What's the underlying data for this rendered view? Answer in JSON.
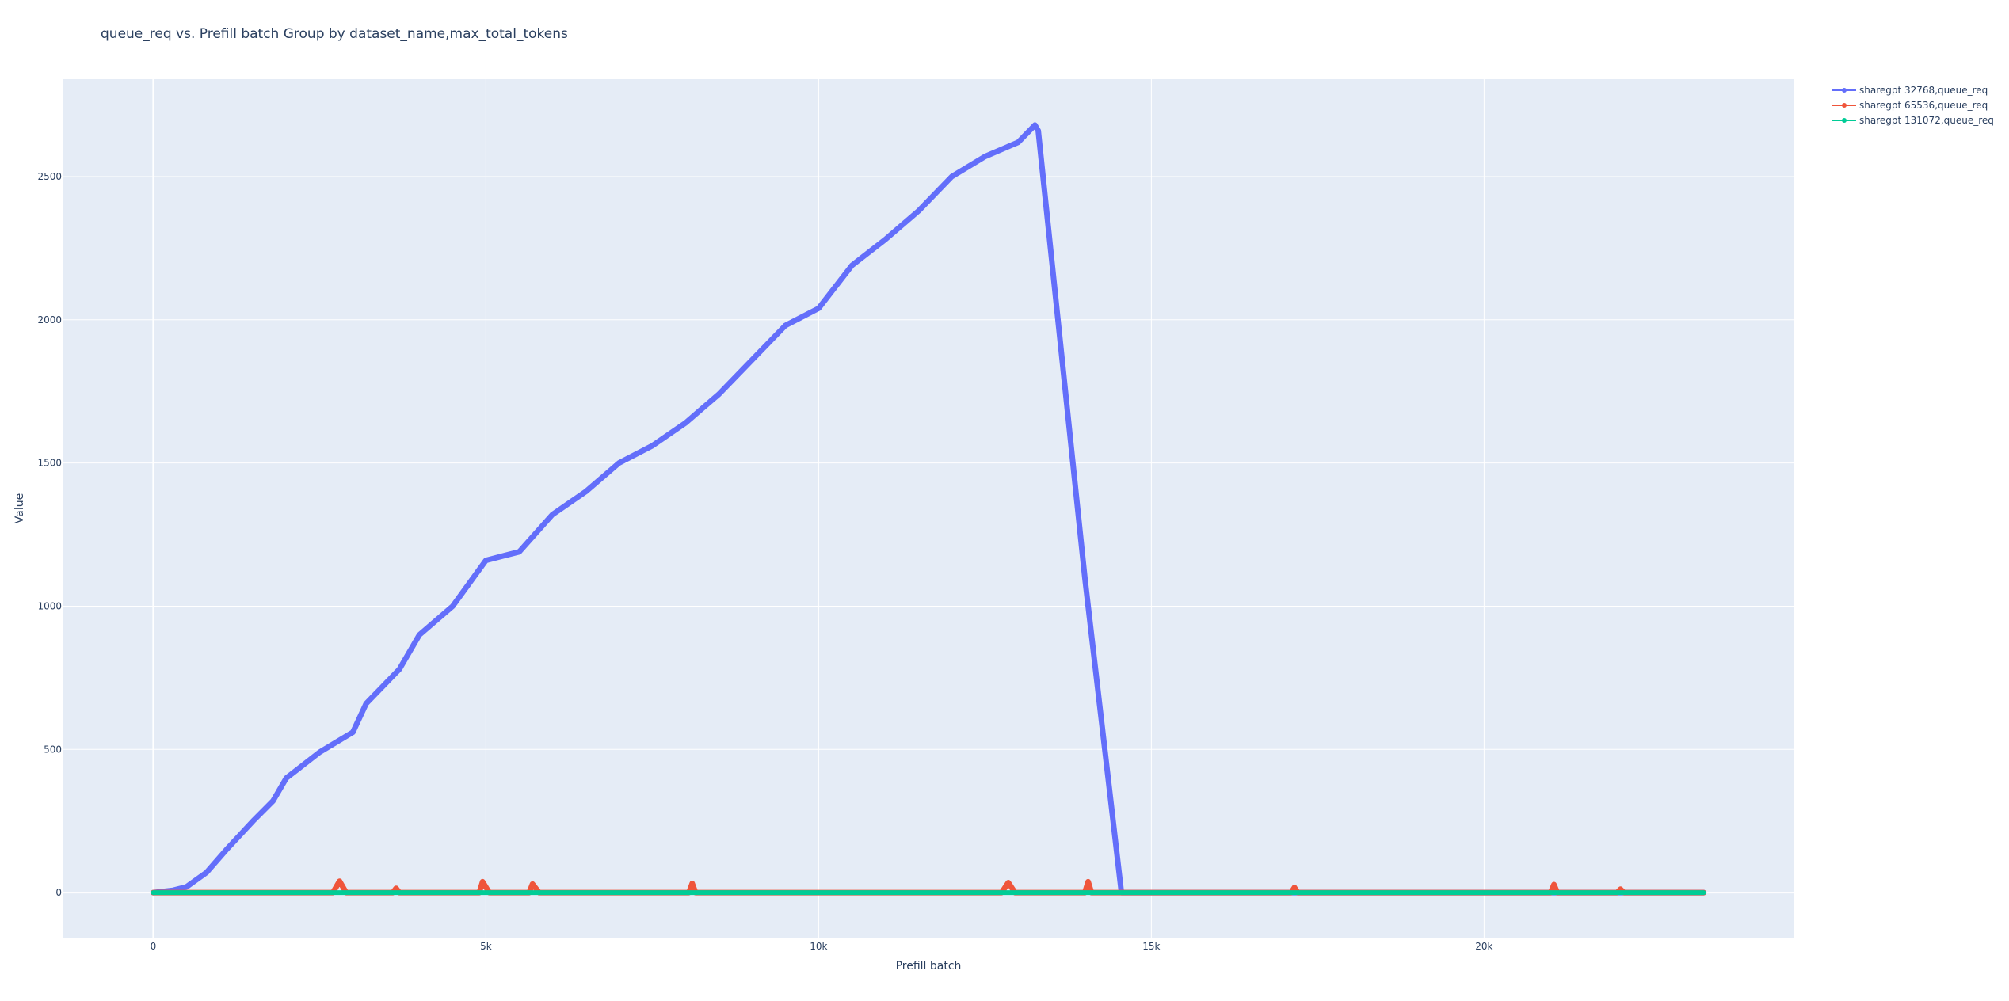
{
  "chart_data": {
    "type": "line",
    "title": "queue_req vs. Prefill batch Group by dataset_name,max_total_tokens",
    "xlabel": "Prefill batch",
    "ylabel": "Value",
    "xlim": [
      -1350,
      24650
    ],
    "ylim": [
      -160,
      2840
    ],
    "x_ticks": [
      0,
      5000,
      10000,
      15000,
      20000
    ],
    "x_tick_labels": [
      "0",
      "5k",
      "10k",
      "15k",
      "20k"
    ],
    "y_ticks": [
      0,
      500,
      1000,
      1500,
      2000,
      2500
    ],
    "y_tick_labels": [
      "0",
      "500",
      "1000",
      "1500",
      "2000",
      "2500"
    ],
    "grid": true,
    "legend_position": "top-right outside",
    "series": [
      {
        "name": "sharegpt 32768,queue_req",
        "color": "#636efa",
        "points": [
          [
            0,
            0
          ],
          [
            300,
            8
          ],
          [
            500,
            20
          ],
          [
            800,
            70
          ],
          [
            1100,
            150
          ],
          [
            1500,
            250
          ],
          [
            1800,
            320
          ],
          [
            2000,
            400
          ],
          [
            2500,
            490
          ],
          [
            3000,
            560
          ],
          [
            3200,
            660
          ],
          [
            3700,
            780
          ],
          [
            4000,
            900
          ],
          [
            4500,
            1000
          ],
          [
            5000,
            1160
          ],
          [
            5500,
            1190
          ],
          [
            6000,
            1320
          ],
          [
            6500,
            1400
          ],
          [
            7000,
            1500
          ],
          [
            7500,
            1560
          ],
          [
            8000,
            1640
          ],
          [
            8500,
            1740
          ],
          [
            9000,
            1860
          ],
          [
            9500,
            1980
          ],
          [
            10000,
            2040
          ],
          [
            10500,
            2190
          ],
          [
            11000,
            2280
          ],
          [
            11500,
            2380
          ],
          [
            12000,
            2500
          ],
          [
            12500,
            2570
          ],
          [
            13000,
            2620
          ],
          [
            13250,
            2680
          ],
          [
            13300,
            2660
          ],
          [
            14000,
            1100
          ],
          [
            14550,
            0
          ],
          [
            23300,
            0
          ]
        ]
      },
      {
        "name": "sharegpt 65536,queue_req",
        "color": "#ef553b",
        "points": [
          [
            0,
            0
          ],
          [
            2700,
            0
          ],
          [
            2800,
            40
          ],
          [
            2900,
            0
          ],
          [
            3600,
            0
          ],
          [
            3650,
            15
          ],
          [
            3700,
            0
          ],
          [
            4900,
            0
          ],
          [
            4950,
            38
          ],
          [
            5050,
            0
          ],
          [
            5650,
            0
          ],
          [
            5700,
            30
          ],
          [
            5800,
            0
          ],
          [
            8050,
            0
          ],
          [
            8100,
            32
          ],
          [
            8150,
            0
          ],
          [
            12750,
            0
          ],
          [
            12850,
            35
          ],
          [
            12950,
            0
          ],
          [
            14000,
            0
          ],
          [
            14050,
            38
          ],
          [
            14100,
            0
          ],
          [
            17100,
            0
          ],
          [
            17150,
            18
          ],
          [
            17200,
            0
          ],
          [
            21000,
            0
          ],
          [
            21050,
            28
          ],
          [
            21100,
            0
          ],
          [
            22000,
            0
          ],
          [
            22050,
            12
          ],
          [
            22100,
            0
          ],
          [
            23300,
            0
          ]
        ]
      },
      {
        "name": "sharegpt 131072,queue_req",
        "color": "#00cc96",
        "points": [
          [
            0,
            0
          ],
          [
            23300,
            0
          ]
        ]
      }
    ]
  }
}
